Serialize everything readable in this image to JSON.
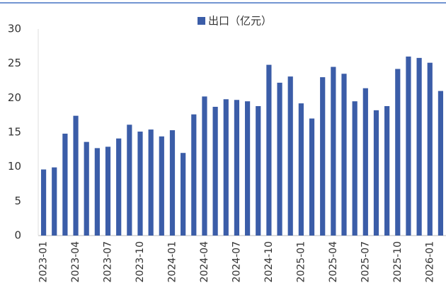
{
  "chart_data": {
    "type": "bar",
    "legend": "top",
    "series": [
      {
        "name": "出口（亿元）",
        "color": "#3b5da8",
        "values": [
          9.6,
          9.9,
          14.8,
          17.4,
          13.6,
          12.7,
          12.9,
          14.1,
          16.1,
          15.1,
          15.4,
          14.4,
          15.3,
          12.0,
          17.6,
          20.2,
          18.7,
          19.8,
          19.7,
          19.5,
          18.8,
          24.8,
          22.2,
          23.1,
          19.2,
          17.0,
          23.0,
          24.5,
          23.5,
          19.5,
          21.4,
          18.2,
          18.8,
          24.2,
          26.0,
          25.8,
          25.1,
          21.0
        ]
      }
    ],
    "categories": [
      "2023-01",
      null,
      null,
      "2023-04",
      null,
      null,
      "2023-07",
      null,
      null,
      "2023-10",
      null,
      null,
      "2024-01",
      null,
      null,
      "2024-04",
      null,
      null,
      "2024-07",
      null,
      null,
      "2024-10",
      null,
      null,
      "2025-01",
      null,
      null,
      "2025-04",
      null,
      null,
      "2025-07",
      null,
      null,
      "2025-10",
      null,
      null,
      "2026-01",
      null
    ],
    "ylim": [
      0,
      30
    ],
    "yticks": [
      0,
      5,
      10,
      15,
      20,
      25,
      30
    ],
    "grid": false
  }
}
